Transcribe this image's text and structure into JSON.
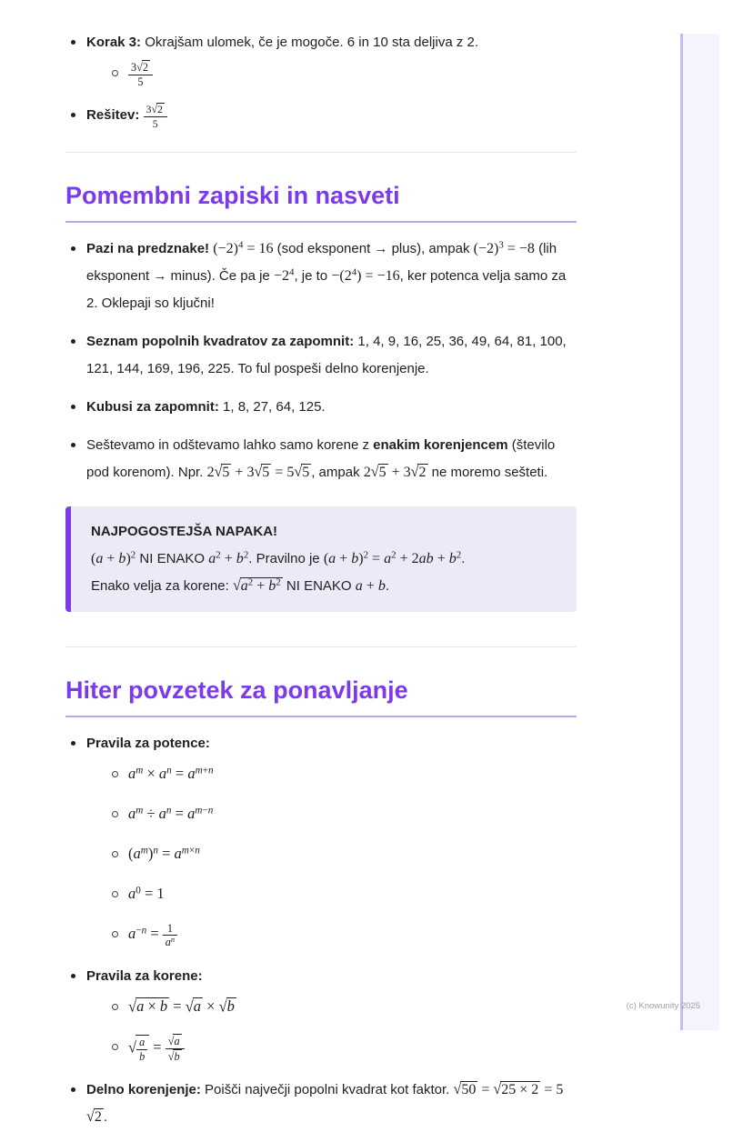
{
  "page": {
    "footer": "(c) Knowunity 2025"
  },
  "colors": {
    "accent_purple": "#7c3aed",
    "heading_underline": "#b7a6ee",
    "callout_background": "#edeaf8",
    "divider_gray": "#e8e8e8",
    "body_text": "#202124",
    "footer_gray": "#9aa0a6",
    "page_edge_fill": "#f5f3fb",
    "page_edge_border": "#c9baed"
  },
  "intro": {
    "items": [
      {
        "segments": [
          {
            "b": "Korak 3:"
          },
          {
            "p": " Okrajšam ulomek, če je mogoče. 6 in 10 sta deljiva z 2."
          }
        ],
        "sub": [
          {
            "segments": [
              {
                "m": [
                  {
                    "frac": {
                      "n": [
                        {
                          "t": "3"
                        },
                        {
                          "sqrt": [
                            {
                              "t": "2"
                            }
                          ]
                        }
                      ],
                      "d": [
                        {
                          "t": "5"
                        }
                      ]
                    }
                  }
                ]
              }
            ]
          }
        ]
      },
      {
        "segments": [
          {
            "b": "Rešitev: "
          },
          {
            "m": [
              {
                "frac": {
                  "n": [
                    {
                      "t": "3"
                    },
                    {
                      "sqrt": [
                        {
                          "t": "2"
                        }
                      ]
                    }
                  ],
                  "d": [
                    {
                      "t": "5"
                    }
                  ]
                }
              }
            ]
          }
        ]
      }
    ]
  },
  "section_notes": {
    "title": "Pomembni zapiski in nasveti",
    "items": [
      {
        "segments": [
          {
            "b": "Pazi na predznake!"
          },
          {
            "p": " "
          },
          {
            "m": [
              {
                "t": "(−2)"
              },
              {
                "sup": [
                  {
                    "t": "4"
                  }
                ]
              },
              {
                "t": " = 16"
              }
            ]
          },
          {
            "p": " (sod eksponent → plus), ampak "
          },
          {
            "m": [
              {
                "t": "(−2)"
              },
              {
                "sup": [
                  {
                    "t": "3"
                  }
                ]
              },
              {
                "t": " = −8"
              }
            ]
          },
          {
            "p": " (lih eksponent → minus). Če pa je "
          },
          {
            "m": [
              {
                "t": "−2"
              },
              {
                "sup": [
                  {
                    "t": "4"
                  }
                ]
              }
            ]
          },
          {
            "p": ", je to "
          },
          {
            "m": [
              {
                "t": "−(2"
              },
              {
                "sup": [
                  {
                    "t": "4"
                  }
                ]
              },
              {
                "t": ") = −16"
              }
            ]
          },
          {
            "p": ", ker potenca velja samo za 2. Oklepaji so ključni!"
          }
        ]
      },
      {
        "segments": [
          {
            "b": "Seznam popolnih kvadratov za zapomnit:"
          },
          {
            "p": " 1, 4, 9, 16, 25, 36, 49, 64, 81, 100, 121, 144, 169, 196, 225. To ful pospeši delno korenjenje."
          }
        ]
      },
      {
        "segments": [
          {
            "b": "Kubusi za zapomnit:"
          },
          {
            "p": " 1, 8, 27, 64, 125."
          }
        ]
      },
      {
        "segments": [
          {
            "p": "Seštevamo in odštevamo lahko samo korene z "
          },
          {
            "b": "enakim korenjencem"
          },
          {
            "p": " (število pod korenom). Npr. "
          },
          {
            "m": [
              {
                "t": "2"
              },
              {
                "sqrt": [
                  {
                    "t": "5"
                  }
                ]
              },
              {
                "t": " + 3"
              },
              {
                "sqrt": [
                  {
                    "t": "5"
                  }
                ]
              },
              {
                "t": " = 5"
              },
              {
                "sqrt": [
                  {
                    "t": "5"
                  }
                ]
              }
            ]
          },
          {
            "p": ", ampak "
          },
          {
            "m": [
              {
                "t": "2"
              },
              {
                "sqrt": [
                  {
                    "t": "5"
                  }
                ]
              },
              {
                "t": " + 3"
              },
              {
                "sqrt": [
                  {
                    "t": "2"
                  }
                ]
              }
            ]
          },
          {
            "p": " ne moremo sešteti."
          }
        ]
      }
    ],
    "callout": {
      "title": "NAJPOGOSTEJŠA NAPAKA!",
      "lines": [
        [
          {
            "m": [
              {
                "t": "("
              },
              {
                "i": "a"
              },
              {
                "t": " + "
              },
              {
                "i": "b"
              },
              {
                "t": ")"
              },
              {
                "sup": [
                  {
                    "t": "2"
                  }
                ]
              }
            ]
          },
          {
            "p": " NI ENAKO "
          },
          {
            "m": [
              {
                "i": "a"
              },
              {
                "sup": [
                  {
                    "t": "2"
                  }
                ]
              },
              {
                "t": " + "
              },
              {
                "i": "b"
              },
              {
                "sup": [
                  {
                    "t": "2"
                  }
                ]
              }
            ]
          },
          {
            "p": ". Pravilno je "
          },
          {
            "m": [
              {
                "t": "("
              },
              {
                "i": "a"
              },
              {
                "t": " + "
              },
              {
                "i": "b"
              },
              {
                "t": ")"
              },
              {
                "sup": [
                  {
                    "t": "2"
                  }
                ]
              },
              {
                "t": " = "
              },
              {
                "i": "a"
              },
              {
                "sup": [
                  {
                    "t": "2"
                  }
                ]
              },
              {
                "t": " + 2"
              },
              {
                "i": "ab"
              },
              {
                "t": " + "
              },
              {
                "i": "b"
              },
              {
                "sup": [
                  {
                    "t": "2"
                  }
                ]
              }
            ]
          },
          {
            "p": "."
          }
        ],
        [
          {
            "p": "Enako velja za korene: "
          },
          {
            "m": [
              {
                "sqrt": [
                  {
                    "i": "a"
                  },
                  {
                    "sup": [
                      {
                        "t": "2"
                      }
                    ]
                  },
                  {
                    "t": " + "
                  },
                  {
                    "i": "b"
                  },
                  {
                    "sup": [
                      {
                        "t": "2"
                      }
                    ]
                  }
                ]
              }
            ]
          },
          {
            "p": " NI ENAKO "
          },
          {
            "m": [
              {
                "i": "a"
              },
              {
                "t": " + "
              },
              {
                "i": "b"
              }
            ]
          },
          {
            "p": "."
          }
        ]
      ]
    }
  },
  "section_summary": {
    "title": "Hiter povzetek za ponavljanje",
    "items": [
      {
        "segments": [
          {
            "b": "Pravila za potence:"
          }
        ],
        "sub": [
          {
            "segments": [
              {
                "m": [
                  {
                    "i": "a"
                  },
                  {
                    "sup": [
                      {
                        "i": "m"
                      }
                    ]
                  },
                  {
                    "t": " × "
                  },
                  {
                    "i": "a"
                  },
                  {
                    "sup": [
                      {
                        "i": "n"
                      }
                    ]
                  },
                  {
                    "t": " = "
                  },
                  {
                    "i": "a"
                  },
                  {
                    "sup": [
                      {
                        "i": "m"
                      },
                      {
                        "t": "+"
                      },
                      {
                        "i": "n"
                      }
                    ]
                  }
                ]
              }
            ]
          },
          {
            "segments": [
              {
                "m": [
                  {
                    "i": "a"
                  },
                  {
                    "sup": [
                      {
                        "i": "m"
                      }
                    ]
                  },
                  {
                    "t": " ÷ "
                  },
                  {
                    "i": "a"
                  },
                  {
                    "sup": [
                      {
                        "i": "n"
                      }
                    ]
                  },
                  {
                    "t": " = "
                  },
                  {
                    "i": "a"
                  },
                  {
                    "sup": [
                      {
                        "i": "m"
                      },
                      {
                        "t": "−"
                      },
                      {
                        "i": "n"
                      }
                    ]
                  }
                ]
              }
            ]
          },
          {
            "segments": [
              {
                "m": [
                  {
                    "t": "("
                  },
                  {
                    "i": "a"
                  },
                  {
                    "sup": [
                      {
                        "i": "m"
                      }
                    ]
                  },
                  {
                    "t": ")"
                  },
                  {
                    "sup": [
                      {
                        "i": "n"
                      }
                    ]
                  },
                  {
                    "t": " = "
                  },
                  {
                    "i": "a"
                  },
                  {
                    "sup": [
                      {
                        "i": "m"
                      },
                      {
                        "t": "×"
                      },
                      {
                        "i": "n"
                      }
                    ]
                  }
                ]
              }
            ]
          },
          {
            "segments": [
              {
                "m": [
                  {
                    "i": "a"
                  },
                  {
                    "sup": [
                      {
                        "t": "0"
                      }
                    ]
                  },
                  {
                    "t": " = 1"
                  }
                ]
              }
            ]
          },
          {
            "segments": [
              {
                "m": [
                  {
                    "i": "a"
                  },
                  {
                    "sup": [
                      {
                        "t": "−"
                      },
                      {
                        "i": "n"
                      }
                    ]
                  },
                  {
                    "t": " = "
                  },
                  {
                    "frac": {
                      "n": [
                        {
                          "t": "1"
                        }
                      ],
                      "d": [
                        {
                          "i": "a"
                        },
                        {
                          "sup": [
                            {
                              "i": "n"
                            }
                          ]
                        }
                      ]
                    }
                  }
                ]
              }
            ]
          }
        ]
      },
      {
        "segments": [
          {
            "b": "Pravila za korene:"
          }
        ],
        "sub": [
          {
            "segments": [
              {
                "m": [
                  {
                    "sqrt": [
                      {
                        "i": "a"
                      },
                      {
                        "t": " × "
                      },
                      {
                        "i": "b"
                      }
                    ]
                  },
                  {
                    "t": " = "
                  },
                  {
                    "sqrt": [
                      {
                        "i": "a"
                      }
                    ]
                  },
                  {
                    "t": " × "
                  },
                  {
                    "sqrt": [
                      {
                        "i": "b"
                      }
                    ]
                  }
                ]
              }
            ]
          },
          {
            "segments": [
              {
                "m": [
                  {
                    "sqrt": [
                      {
                        "frac": {
                          "n": [
                            {
                              "i": "a"
                            }
                          ],
                          "d": [
                            {
                              "i": "b"
                            }
                          ]
                        }
                      }
                    ]
                  },
                  {
                    "t": " = "
                  },
                  {
                    "frac": {
                      "n": [
                        {
                          "sqrt": [
                            {
                              "i": "a"
                            }
                          ]
                        }
                      ],
                      "d": [
                        {
                          "sqrt": [
                            {
                              "i": "b"
                            }
                          ]
                        }
                      ]
                    }
                  }
                ]
              }
            ]
          }
        ]
      },
      {
        "segments": [
          {
            "b": "Delno korenjenje:"
          },
          {
            "p": " Poišči največji popolni kvadrat kot faktor. "
          },
          {
            "m": [
              {
                "sqrt": [
                  {
                    "t": "50"
                  }
                ]
              },
              {
                "t": " = "
              },
              {
                "sqrt": [
                  {
                    "t": "25 × 2"
                  }
                ]
              },
              {
                "t": " = 5"
              },
              {
                "sqrt": [
                  {
                    "t": "2"
                  }
                ]
              }
            ]
          },
          {
            "p": "."
          }
        ]
      }
    ]
  }
}
